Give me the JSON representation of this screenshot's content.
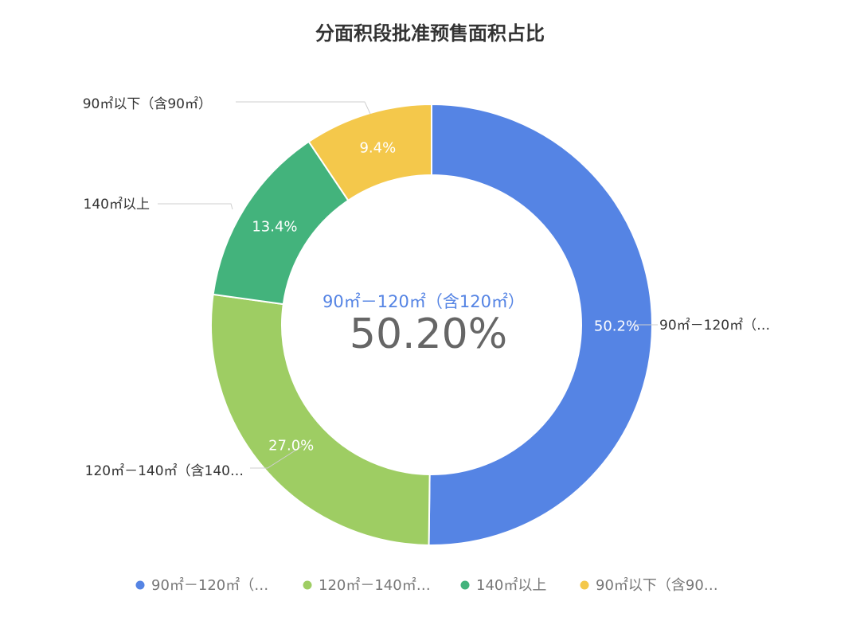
{
  "chart_data": {
    "type": "pie",
    "title": "分面积段批准预售面积占比",
    "center": {
      "name": "90㎡－120㎡（含120㎡）",
      "value": "50.20%"
    },
    "slices": [
      {
        "label": "90㎡－120㎡（…",
        "full_name": "90㎡－120㎡（含120㎡）",
        "value": 50.2,
        "value_label": "50.2%",
        "color": "#5584e4"
      },
      {
        "label": "120㎡－140㎡（含140…",
        "value": 27.0,
        "value_label": "27.0%",
        "color": "#9ecd63"
      },
      {
        "label": "140㎡以上",
        "value": 13.4,
        "value_label": "13.4%",
        "color": "#43b37c"
      },
      {
        "label": "90㎡以下（含90㎡）",
        "value": 9.4,
        "value_label": "9.4%",
        "color": "#f4c84b"
      }
    ],
    "legend": {
      "position": "bottom",
      "items": [
        "90㎡－120㎡（…",
        "120㎡－140㎡…",
        "140㎡以上",
        "90㎡以下（含90…"
      ]
    }
  }
}
